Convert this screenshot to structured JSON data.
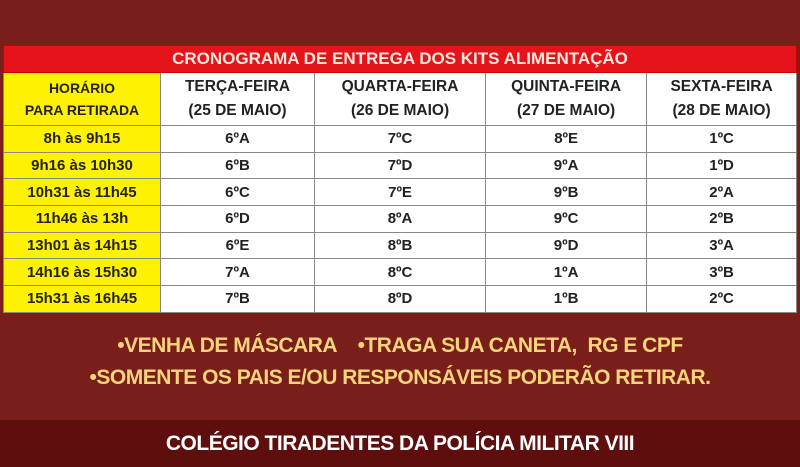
{
  "table": {
    "title": "CRONOGRAMA DE ENTREGA DOS KITS ALIMENTAÇÃO",
    "time_header": [
      "HORÁRIO",
      "PARA RETIRADA"
    ],
    "days": [
      [
        "TERÇA-FEIRA",
        "(25 DE MAIO)"
      ],
      [
        "QUARTA-FEIRA",
        "(26 DE MAIO)"
      ],
      [
        "QUINTA-FEIRA",
        "(27 DE MAIO)"
      ],
      [
        "SEXTA-FEIRA",
        "(28 DE MAIO)"
      ]
    ],
    "rows": [
      [
        "8h às 9h15",
        "6ºA",
        "7ºC",
        "8ºE",
        "1ºC"
      ],
      [
        "9h16 às 10h30",
        "6ºB",
        "7ºD",
        "9ºA",
        "1ºD"
      ],
      [
        "10h31 às 11h45",
        "6ºC",
        "7ºE",
        "9ºB",
        "2ºA"
      ],
      [
        "11h46 às 13h",
        "6ºD",
        "8ºA",
        "9ºC",
        "2ºB"
      ],
      [
        "13h01 às 14h15",
        "6ºE",
        "8ºB",
        "9ºD",
        "3ºA"
      ],
      [
        "14h16 às 15h30",
        "7ºA",
        "8ºC",
        "1ºA",
        "3ºB"
      ],
      [
        "15h31 às 16h45",
        "7ºB",
        "8ºD",
        "1ºB",
        "2ºC"
      ]
    ]
  },
  "notes": [
    "•VENHA DE MÁSCARA    •TRAGA SUA CANETA,  RG E CPF",
    "•SOMENTE OS PAIS E/OU RESPONSÁVEIS PODERÃO RETIRAR."
  ],
  "footer": "COLÉGIO TIRADENTES DA POLÍCIA MILITAR VIII",
  "colors": {
    "background": "#7a1e1a",
    "title_bar": "#e5141b",
    "time_column": "#fff200",
    "notes_text": "#f6d47c",
    "footer_bar": "#5e0e0c"
  }
}
